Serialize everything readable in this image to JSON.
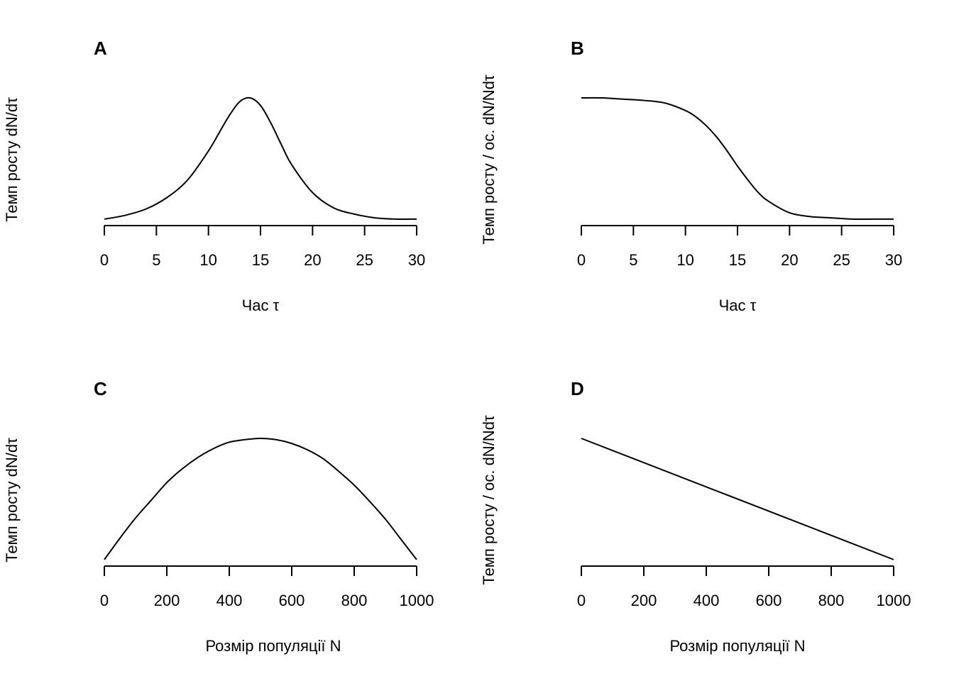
{
  "chart_data": [
    {
      "type": "line",
      "panel": "A",
      "xlabel": "Час τ",
      "ylabel": "Темп росту dN/dτ",
      "xlim": [
        0,
        30
      ],
      "x_ticks": [
        0,
        5,
        10,
        15,
        20,
        25,
        30
      ],
      "x_tick_labels": [
        "0",
        "5",
        "10",
        "15",
        "20",
        "25",
        "30"
      ],
      "y_axis_shown": false,
      "grid": false,
      "ylim": [
        0,
        1.05
      ],
      "x": [
        0,
        2,
        4,
        6,
        8,
        10,
        11,
        12,
        13,
        14,
        15,
        16,
        17,
        18,
        20,
        22,
        24,
        26,
        28,
        30
      ],
      "y": [
        0.04,
        0.07,
        0.12,
        0.21,
        0.35,
        0.58,
        0.72,
        0.86,
        0.97,
        1.0,
        0.94,
        0.8,
        0.63,
        0.47,
        0.25,
        0.13,
        0.08,
        0.05,
        0.04,
        0.04
      ]
    },
    {
      "type": "line",
      "panel": "B",
      "xlabel": "Час τ",
      "ylabel": "Темп росту / ос. dN/Ndτ",
      "xlim": [
        0,
        30
      ],
      "x_ticks": [
        0,
        5,
        10,
        15,
        20,
        25,
        30
      ],
      "x_tick_labels": [
        "0",
        "5",
        "10",
        "15",
        "20",
        "25",
        "30"
      ],
      "y_axis_shown": false,
      "grid": false,
      "ylim": [
        0,
        1.05
      ],
      "x": [
        0,
        2,
        4,
        6,
        8,
        10,
        11,
        12,
        13,
        14,
        15,
        16,
        17,
        18,
        20,
        22,
        24,
        26,
        28,
        30
      ],
      "y": [
        1.0,
        1.0,
        0.99,
        0.98,
        0.96,
        0.9,
        0.85,
        0.78,
        0.69,
        0.58,
        0.46,
        0.35,
        0.25,
        0.18,
        0.09,
        0.06,
        0.05,
        0.04,
        0.04,
        0.04
      ]
    },
    {
      "type": "line",
      "panel": "C",
      "xlabel": "Розмір популяції N",
      "ylabel": "Темп росту dN/dτ",
      "xlim": [
        0,
        1000
      ],
      "x_ticks": [
        0,
        200,
        400,
        600,
        800,
        1000
      ],
      "x_tick_labels": [
        "0",
        "200",
        "400",
        "600",
        "800",
        "1000"
      ],
      "y_axis_shown": false,
      "grid": false,
      "ylim": [
        0,
        1.05
      ],
      "x": [
        0,
        50,
        100,
        150,
        200,
        250,
        300,
        350,
        400,
        450,
        500,
        550,
        600,
        650,
        700,
        750,
        800,
        850,
        900,
        950,
        1000
      ],
      "y": [
        0.04,
        0.21,
        0.37,
        0.51,
        0.65,
        0.76,
        0.85,
        0.92,
        0.97,
        0.99,
        1.0,
        0.99,
        0.96,
        0.91,
        0.84,
        0.74,
        0.63,
        0.5,
        0.36,
        0.2,
        0.04
      ]
    },
    {
      "type": "line",
      "panel": "D",
      "xlabel": "Розмір популяції N",
      "ylabel": "Темп росту / ос. dN/Ndτ",
      "xlim": [
        0,
        1000
      ],
      "x_ticks": [
        0,
        200,
        400,
        600,
        800,
        1000
      ],
      "x_tick_labels": [
        "0",
        "200",
        "400",
        "600",
        "800",
        "1000"
      ],
      "y_axis_shown": false,
      "grid": false,
      "ylim": [
        0,
        1.05
      ],
      "x": [
        0,
        1000
      ],
      "y": [
        1.0,
        0.04
      ]
    }
  ]
}
